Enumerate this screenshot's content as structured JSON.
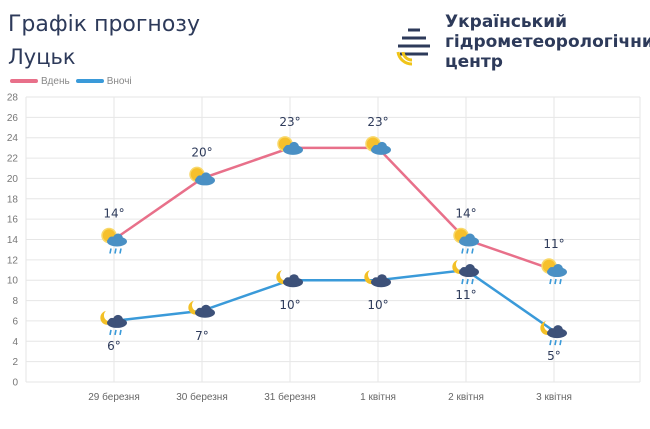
{
  "header": {
    "title": "Графік прогнозу",
    "city": "Луцьк",
    "org_lines": [
      "Український",
      "гідрометеорологічний",
      "центр"
    ]
  },
  "colors": {
    "day": "#e8708a",
    "night": "#3a9ad9",
    "grid": "#e6e6e6",
    "text": "#2d3a5a"
  },
  "chart_data": {
    "type": "line",
    "categories": [
      "29 березня",
      "30 березня",
      "31 березня",
      "1 квітня",
      "2 квітня",
      "3 квітня"
    ],
    "ylim": [
      0,
      28
    ],
    "yticks": [
      0,
      2,
      4,
      6,
      8,
      10,
      12,
      14,
      16,
      18,
      20,
      22,
      24,
      26,
      28
    ],
    "grid": true,
    "legend": "top-left",
    "series": [
      {
        "name": "Вдень",
        "values": [
          14,
          20,
          23,
          23,
          14,
          11
        ],
        "labels": [
          "14°",
          "20°",
          "23°",
          "23°",
          "14°",
          "11°"
        ],
        "icons": [
          "sun-cloud-rain-icon",
          "sun-cloud-icon",
          "sun-cloud-icon",
          "sun-cloud-icon",
          "sun-cloud-rain-icon",
          "sun-cloud-rain-icon"
        ]
      },
      {
        "name": "Вночі",
        "values": [
          6,
          7,
          10,
          10,
          11,
          5
        ],
        "labels": [
          "6°",
          "7°",
          "10°",
          "10°",
          "11°",
          "5°"
        ],
        "icons": [
          "moon-cloud-rain-icon",
          "moon-cloud-icon",
          "moon-cloud-icon",
          "moon-cloud-icon",
          "moon-cloud-rain-icon",
          "moon-cloud-rain-icon"
        ]
      }
    ]
  }
}
